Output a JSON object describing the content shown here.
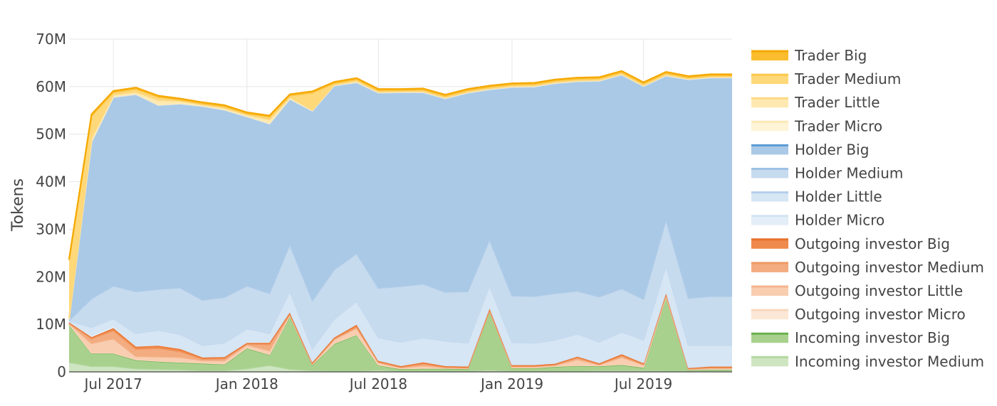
{
  "chart_data": {
    "type": "area",
    "stacked": true,
    "ylabel": "Tokens",
    "ylim": [
      0,
      70000000
    ],
    "yticks": [
      0,
      10000000,
      20000000,
      30000000,
      40000000,
      50000000,
      60000000,
      70000000
    ],
    "ytick_labels": [
      "0",
      "10M",
      "20M",
      "30M",
      "40M",
      "50M",
      "60M",
      "70M"
    ],
    "xlim": [
      "2017-05-01",
      "2019-10-31"
    ],
    "xticks": [
      "2017-07-01",
      "2018-01-01",
      "2018-07-01",
      "2019-01-01",
      "2019-07-01"
    ],
    "xtick_labels": [
      "Jul 2017",
      "Jan 2018",
      "Jul 2018",
      "Jan 2019",
      "Jul 2019"
    ],
    "grid": true,
    "legend_position": "right",
    "x": [
      "2017-05-01",
      "2017-06-01",
      "2017-07-01",
      "2017-08-01",
      "2017-09-01",
      "2017-10-01",
      "2017-11-01",
      "2017-12-01",
      "2018-01-01",
      "2018-02-01",
      "2018-03-01",
      "2018-04-01",
      "2018-05-01",
      "2018-06-01",
      "2018-07-01",
      "2018-08-01",
      "2018-09-01",
      "2018-10-01",
      "2018-11-01",
      "2018-12-01",
      "2019-01-01",
      "2019-02-01",
      "2019-03-01",
      "2019-04-01",
      "2019-05-01",
      "2019-06-01",
      "2019-07-01",
      "2019-08-01",
      "2019-09-01",
      "2019-10-01",
      "2019-10-31"
    ],
    "series": [
      {
        "name": "Incoming investor Medium",
        "color": "#cfe5c1",
        "line": "#b2d8a0",
        "values": [
          2.0,
          1.2,
          1.2,
          0.7,
          0.6,
          0.5,
          0.3,
          0.3,
          0.7,
          1.4,
          0.6,
          0.3,
          0.2,
          0.2,
          0.4,
          0.2,
          0.2,
          0.2,
          0.2,
          0.4,
          0.2,
          0.2,
          0.2,
          0.2,
          0.3,
          0.3,
          0.3,
          0.2,
          0.2,
          0.2,
          0.2
        ]
      },
      {
        "name": "Incoming investor Big",
        "color": "#a9d18e",
        "line": "#6ab04c",
        "values": [
          8.0,
          2.7,
          2.7,
          1.8,
          1.6,
          1.5,
          1.5,
          1.3,
          4.3,
          2.2,
          11.2,
          1.2,
          5.7,
          7.6,
          1.0,
          0.4,
          0.5,
          0.5,
          0.4,
          12.4,
          0.6,
          0.6,
          0.9,
          1.1,
          0.9,
          1.2,
          0.6,
          15.6,
          0.2,
          0.3,
          0.3
        ]
      },
      {
        "name": "Outgoing investor Micro",
        "color": "#fbe7d6",
        "line": "#f7d7bd",
        "values": [
          0.1,
          0.1,
          0.1,
          0.1,
          0.1,
          0.1,
          0.1,
          0.1,
          0.1,
          0.1,
          0.1,
          0.1,
          0.1,
          0.1,
          0.1,
          0.1,
          0.1,
          0.1,
          0.1,
          0.1,
          0.1,
          0.1,
          0.1,
          0.1,
          0.1,
          0.1,
          0.1,
          0.1,
          0.1,
          0.1,
          0.1
        ]
      },
      {
        "name": "Outgoing investor Little",
        "color": "#f9cdb0",
        "line": "#f4b48d",
        "values": [
          0.1,
          2.0,
          3.0,
          0.7,
          0.9,
          1.0,
          0.5,
          0.7,
          0.6,
          0.8,
          0.2,
          0.1,
          0.8,
          1.3,
          0.5,
          0.2,
          0.5,
          0.1,
          0.1,
          0.1,
          0.2,
          0.2,
          0.2,
          1.2,
          0.2,
          1.5,
          0.5,
          0.3,
          0.1,
          0.2,
          0.2
        ]
      },
      {
        "name": "Outgoing investor Medium",
        "color": "#f3ac80",
        "line": "#ef9964",
        "values": [
          0.1,
          1.0,
          1.7,
          1.5,
          1.8,
          1.2,
          0.3,
          0.4,
          0.2,
          1.3,
          0.1,
          0.1,
          0.2,
          0.3,
          0.1,
          0.1,
          0.4,
          0.1,
          0.1,
          0.1,
          0.1,
          0.1,
          0.1,
          0.4,
          0.1,
          0.3,
          0.1,
          0.2,
          0.1,
          0.1,
          0.1
        ]
      },
      {
        "name": "Outgoing investor Big",
        "color": "#ef8a4c",
        "line": "#e8702a",
        "values": [
          0.1,
          0.3,
          0.5,
          0.5,
          0.5,
          0.5,
          0.3,
          0.3,
          0.2,
          0.3,
          0.3,
          0.2,
          0.2,
          0.4,
          0.2,
          0.2,
          0.3,
          0.2,
          0.2,
          0.3,
          0.2,
          0.2,
          0.2,
          0.2,
          0.2,
          0.3,
          0.2,
          0.3,
          0.1,
          0.2,
          0.2
        ]
      },
      {
        "name": "Holder Micro",
        "color": "#e4eef8",
        "line": "#d2e3f3",
        "values": [
          0.2,
          0.5,
          0.5,
          0.3,
          0.3,
          0.3,
          0.2,
          0.2,
          0.3,
          0.3,
          0.3,
          0.2,
          0.3,
          0.3,
          0.2,
          0.2,
          0.3,
          0.2,
          0.2,
          0.3,
          0.2,
          0.2,
          0.2,
          0.2,
          0.2,
          0.3,
          0.2,
          0.3,
          0.2,
          0.2,
          0.2
        ]
      },
      {
        "name": "Holder Little",
        "color": "#d7e6f4",
        "line": "#c5daef",
        "values": [
          0.1,
          1.6,
          1.5,
          2.5,
          3.0,
          2.8,
          2.4,
          2.8,
          2.7,
          1.7,
          4.2,
          2.7,
          3.6,
          4.7,
          4.7,
          4.9,
          4.9,
          5.1,
          4.8,
          4.5,
          4.6,
          4.5,
          4.8,
          4.6,
          4.3,
          4.4,
          4.7,
          5.3,
          4.6,
          4.3,
          4.3
        ]
      },
      {
        "name": "Holder Medium",
        "color": "#c7dbef",
        "line": "#b4cee9",
        "values": [
          0.1,
          6.0,
          6.9,
          8.8,
          8.6,
          9.8,
          9.5,
          9.6,
          9.0,
          8.4,
          9.8,
          10.1,
          10.4,
          10.0,
          10.4,
          11.7,
          11.3,
          10.3,
          10.8,
          9.6,
          9.8,
          9.8,
          9.8,
          9.0,
          9.5,
          9.1,
          8.6,
          9.7,
          9.9,
          10.3,
          10.3
        ]
      },
      {
        "name": "Holder Big",
        "color": "#a9c9e6",
        "line": "#8fb8de",
        "values": [
          0.2,
          33.0,
          39.7,
          41.5,
          38.7,
          38.7,
          40.8,
          39.4,
          35.6,
          35.7,
          30.6,
          39.9,
          38.7,
          36.0,
          41.1,
          40.8,
          40.3,
          40.7,
          41.8,
          31.6,
          43.9,
          44.1,
          44.2,
          44.1,
          45.4,
          45.0,
          44.8,
          30.3,
          46.0,
          46.0,
          46.0
        ]
      },
      {
        "name": "Holder Micro",
        "color": "#e4eef8",
        "line": "#d2e3f3",
        "values": [
          0,
          0,
          0,
          0,
          0,
          0,
          0,
          0,
          0,
          0,
          0,
          0,
          0,
          0,
          0,
          0,
          0,
          0,
          0,
          0,
          0,
          0,
          0,
          0,
          0,
          0,
          0,
          0,
          0,
          0,
          0
        ]
      },
      {
        "name": "Trader Micro",
        "color": "#fff4d6",
        "line": "#fde9b6",
        "values": [
          0.1,
          0.1,
          0.1,
          0.1,
          0.1,
          0.1,
          0.1,
          0.1,
          0.1,
          0.1,
          0.1,
          0.1,
          0.1,
          0.1,
          0.1,
          0.1,
          0.1,
          0.1,
          0.1,
          0.1,
          0.1,
          0.1,
          0.1,
          0.1,
          0.1,
          0.1,
          0.1,
          0.1,
          0.1,
          0.1,
          0.1
        ]
      },
      {
        "name": "Trader Little",
        "color": "#ffe9b0",
        "line": "#fdd985",
        "values": [
          0.2,
          0.8,
          0.4,
          0.4,
          1.0,
          0.5,
          0.2,
          0.3,
          0.3,
          0.8,
          0.3,
          0.1,
          0.1,
          0.2,
          0.1,
          0.1,
          0.1,
          0.1,
          0.1,
          0.1,
          0.1,
          0.1,
          0.1,
          0.1,
          0.1,
          0.1,
          0.1,
          0.1,
          0.1,
          0.1,
          0.1
        ]
      },
      {
        "name": "Trader Medium",
        "color": "#ffd87a",
        "line": "#fcc94d",
        "values": [
          12.2,
          4.5,
          0.5,
          0.6,
          0.6,
          0.2,
          0.2,
          0.3,
          0.2,
          0.5,
          0.3,
          3.6,
          0.3,
          0.3,
          0.3,
          0.2,
          0.3,
          0.3,
          0.3,
          0.3,
          0.3,
          0.3,
          0.3,
          0.3,
          0.3,
          0.3,
          0.3,
          0.3,
          0.2,
          0.2,
          0.2
        ]
      },
      {
        "name": "Trader Big",
        "color": "#fbbd2e",
        "line": "#f5a800",
        "values": [
          0.2,
          0.4,
          0.3,
          0.3,
          0.3,
          0.3,
          0.3,
          0.3,
          0.3,
          0.3,
          0.3,
          0.3,
          0.3,
          0.3,
          0.3,
          0.3,
          0.3,
          0.3,
          0.3,
          0.3,
          0.3,
          0.3,
          0.3,
          0.3,
          0.3,
          0.3,
          0.3,
          0.3,
          0.3,
          0.3,
          0.3
        ]
      }
    ],
    "legend": [
      {
        "name": "Trader Big",
        "color": "#fbbd2e",
        "line": "#f5a800"
      },
      {
        "name": "Trader Medium",
        "color": "#ffd87a",
        "line": "#fcc94d"
      },
      {
        "name": "Trader Little",
        "color": "#ffe9b0",
        "line": "#fdd985"
      },
      {
        "name": "Trader Micro",
        "color": "#fff4d6",
        "line": "#fde9b6"
      },
      {
        "name": "Holder Big",
        "color": "#a9c9e6",
        "line": "#5b9bd5"
      },
      {
        "name": "Holder Medium",
        "color": "#c7dbef",
        "line": "#9fc1e4"
      },
      {
        "name": "Holder Little",
        "color": "#d7e6f4",
        "line": "#b4cee9"
      },
      {
        "name": "Holder Micro",
        "color": "#e4eef8",
        "line": "#d2e3f3"
      },
      {
        "name": "Outgoing investor Big",
        "color": "#ef8a4c",
        "line": "#e8702a"
      },
      {
        "name": "Outgoing investor Medium",
        "color": "#f3ac80",
        "line": "#ef9964"
      },
      {
        "name": "Outgoing investor Little",
        "color": "#f9cdb0",
        "line": "#f4b48d"
      },
      {
        "name": "Outgoing investor Micro",
        "color": "#fbe7d6",
        "line": "#f7d7bd"
      },
      {
        "name": "Incoming investor Big",
        "color": "#a9d18e",
        "line": "#6ab04c"
      },
      {
        "name": "Incoming investor Medium",
        "color": "#cfe5c1",
        "line": "#b2d8a0"
      }
    ]
  }
}
